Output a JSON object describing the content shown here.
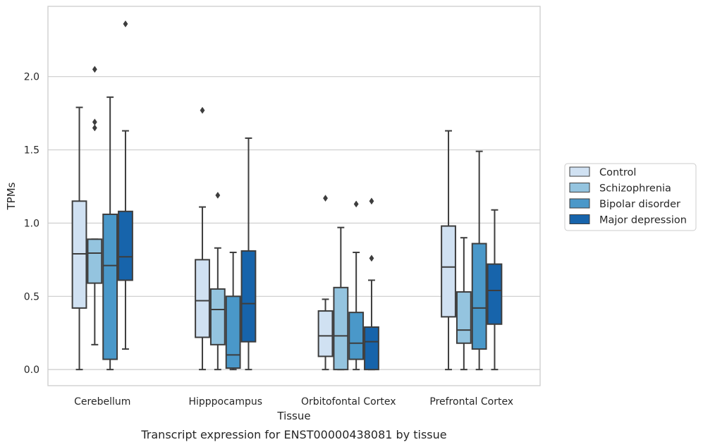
{
  "chart_data": {
    "type": "box",
    "title": "",
    "caption": "Transcript expression for ENST00000438081 by tissue",
    "xlabel": "Tissue",
    "ylabel": "TPMs",
    "ylim": [
      -0.11,
      2.48
    ],
    "yticks": [
      0.0,
      0.5,
      1.0,
      1.5,
      2.0
    ],
    "ytick_labels": [
      "0.0",
      "0.5",
      "1.0",
      "1.5",
      "2.0"
    ],
    "grid": "horizontal",
    "legend_position": "right, outside plot",
    "categories": [
      "Cerebellum",
      "Hipppocampus",
      "Orbitofontal Cortex",
      "Prefrontal Cortex"
    ],
    "series": [
      {
        "name": "Control",
        "color": "#d0e1f2",
        "boxes": [
          {
            "whislo": 0.0,
            "q1": 0.42,
            "med": 0.79,
            "q3": 1.15,
            "whishi": 1.79,
            "fliers": []
          },
          {
            "whislo": 0.0,
            "q1": 0.22,
            "med": 0.47,
            "q3": 0.75,
            "whishi": 1.11,
            "fliers": [
              1.77
            ]
          },
          {
            "whislo": 0.0,
            "q1": 0.09,
            "med": 0.23,
            "q3": 0.4,
            "whishi": 0.48,
            "fliers": [
              1.17
            ]
          },
          {
            "whislo": 0.0,
            "q1": 0.36,
            "med": 0.7,
            "q3": 0.98,
            "whishi": 1.63,
            "fliers": []
          }
        ]
      },
      {
        "name": "Schizophrenia",
        "color": "#94c4df",
        "boxes": [
          {
            "whislo": 0.17,
            "q1": 0.59,
            "med": 0.795,
            "q3": 0.89,
            "whishi": 0.89,
            "fliers": [
              1.65,
              1.69,
              2.05
            ]
          },
          {
            "whislo": 0.0,
            "q1": 0.17,
            "med": 0.41,
            "q3": 0.55,
            "whishi": 0.83,
            "fliers": [
              1.19
            ]
          },
          {
            "whislo": 0.0,
            "q1": 0.0,
            "med": 0.23,
            "q3": 0.56,
            "whishi": 0.97,
            "fliers": []
          },
          {
            "whislo": 0.0,
            "q1": 0.18,
            "med": 0.27,
            "q3": 0.53,
            "whishi": 0.9,
            "fliers": []
          }
        ]
      },
      {
        "name": "Bipolar disorder",
        "color": "#4a98c9",
        "boxes": [
          {
            "whislo": 0.0,
            "q1": 0.07,
            "med": 0.71,
            "q3": 1.06,
            "whishi": 1.86,
            "fliers": []
          },
          {
            "whislo": 0.0,
            "q1": 0.01,
            "med": 0.1,
            "q3": 0.5,
            "whishi": 0.8,
            "fliers": []
          },
          {
            "whislo": 0.0,
            "q1": 0.07,
            "med": 0.18,
            "q3": 0.39,
            "whishi": 0.8,
            "fliers": [
              1.13
            ]
          },
          {
            "whislo": 0.0,
            "q1": 0.14,
            "med": 0.42,
            "q3": 0.86,
            "whishi": 1.49,
            "fliers": []
          }
        ]
      },
      {
        "name": "Major depression",
        "color": "#1764ab",
        "boxes": [
          {
            "whislo": 0.14,
            "q1": 0.61,
            "med": 0.77,
            "q3": 1.08,
            "whishi": 1.63,
            "fliers": [
              2.36
            ]
          },
          {
            "whislo": 0.0,
            "q1": 0.19,
            "med": 0.45,
            "q3": 0.81,
            "whishi": 1.58,
            "fliers": []
          },
          {
            "whislo": 0.0,
            "q1": 0.0,
            "med": 0.19,
            "q3": 0.29,
            "whishi": 0.61,
            "fliers": [
              0.76,
              1.15
            ]
          },
          {
            "whislo": 0.0,
            "q1": 0.31,
            "med": 0.54,
            "q3": 0.72,
            "whishi": 1.09,
            "fliers": []
          }
        ]
      }
    ]
  }
}
